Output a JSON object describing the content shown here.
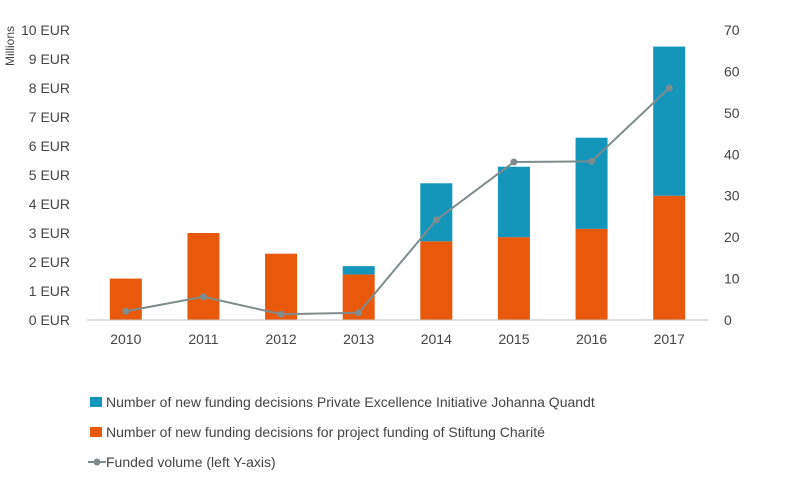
{
  "chart_data": {
    "type": "bar",
    "stacked": true,
    "categories": [
      "2010",
      "2011",
      "2012",
      "2013",
      "2014",
      "2015",
      "2016",
      "2017"
    ],
    "series": [
      {
        "name": "Number of new funding decisions for project funding of Stiftung Charité",
        "kind": "bar",
        "axis": "right",
        "color": "#e8590c",
        "values": [
          10,
          21,
          16,
          11,
          19,
          20,
          22,
          30
        ]
      },
      {
        "name": "Number of new funding decisions Private Excellence Initiative Johanna Quandt",
        "kind": "bar",
        "axis": "right",
        "color": "#1496bb",
        "values": [
          0,
          0,
          0,
          2,
          14,
          17,
          22,
          36
        ]
      },
      {
        "name": "Funded volume (left Y-axis)",
        "kind": "line",
        "axis": "left",
        "color": "#7f8c8d",
        "values": [
          0.3,
          0.8,
          0.2,
          0.25,
          3.45,
          5.45,
          5.47,
          8.0
        ]
      }
    ],
    "left_axis": {
      "label": "Millions",
      "ylim": [
        0,
        10
      ],
      "ticks": [
        "0 EUR",
        "1 EUR",
        "2 EUR",
        "3 EUR",
        "4 EUR",
        "5 EUR",
        "6 EUR",
        "7 EUR",
        "8 EUR",
        "9 EUR",
        "10 EUR"
      ]
    },
    "right_axis": {
      "ylim": [
        0,
        70
      ],
      "ticks": [
        "0",
        "10",
        "20",
        "30",
        "40",
        "50",
        "60",
        "70"
      ]
    },
    "legend": {
      "placement": "bottom",
      "entries": [
        "Number of new funding decisions Private Excellence Initiative Johanna Quandt",
        "Number of new funding decisions for project funding of Stiftung Charité",
        "Funded volume (left Y-axis)"
      ]
    },
    "grid": false
  }
}
